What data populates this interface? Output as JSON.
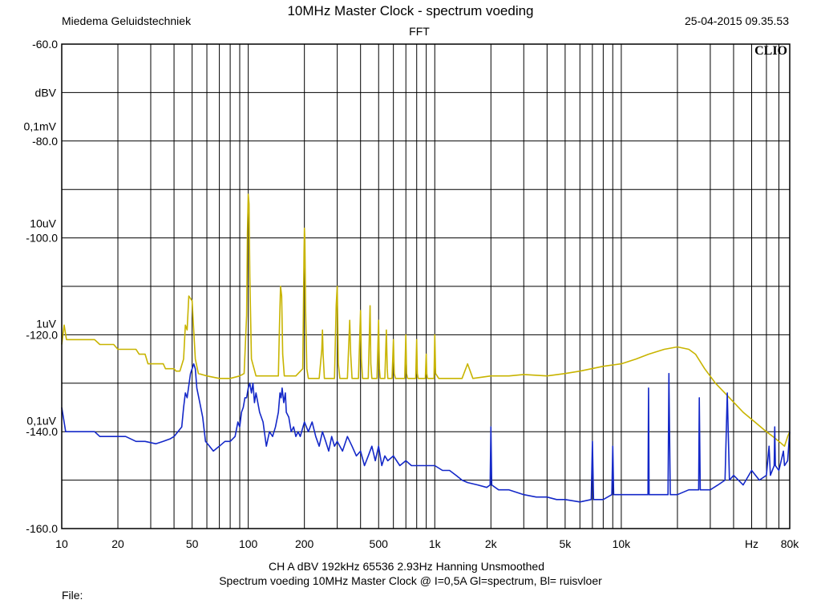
{
  "header": {
    "title": "10MHz Master Clock - spectrum voeding",
    "subtitle": "FFT",
    "company": "Miedema Geluidstechniek",
    "datetime": "25-04-2015 09.35.53"
  },
  "footer": {
    "settings": "CH A   dBV   192kHz   65536   2.93Hz   Hanning   Unsmoothed",
    "description": "Spectrum voeding 10MHz Master Clock @ I=0,5A   Gl=spectrum,  Bl= ruisvloer",
    "file_label": "File:"
  },
  "chart_data": {
    "type": "line",
    "logo": "CLIO",
    "x_scale": "log",
    "xlim": [
      10,
      80000
    ],
    "ylim": [
      -160,
      -60
    ],
    "grid": true,
    "x_tick_labels": [
      {
        "value": 10,
        "label": "10"
      },
      {
        "value": 20,
        "label": "20"
      },
      {
        "value": 50,
        "label": "50"
      },
      {
        "value": 100,
        "label": "100"
      },
      {
        "value": 200,
        "label": "200"
      },
      {
        "value": 500,
        "label": "500"
      },
      {
        "value": 1000,
        "label": "1k"
      },
      {
        "value": 2000,
        "label": "2k"
      },
      {
        "value": 5000,
        "label": "5k"
      },
      {
        "value": 10000,
        "label": "10k"
      },
      {
        "value": 50000,
        "label": "Hz"
      },
      {
        "value": 80000,
        "label": "80k"
      }
    ],
    "y_tick_labels": [
      {
        "value": -60,
        "label": "-60.0"
      },
      {
        "value": -80,
        "label": "-80.0"
      },
      {
        "value": -100,
        "label": "-100.0"
      },
      {
        "value": -120,
        "label": "-120.0"
      },
      {
        "value": -140,
        "label": "-140.0"
      },
      {
        "value": -160,
        "label": "-160.0"
      }
    ],
    "y_unit_labels": [
      {
        "value": -70,
        "label": "dBV"
      },
      {
        "value": -77,
        "label": "0,1mV"
      },
      {
        "value": -97,
        "label": "10uV"
      },
      {
        "value": -117.7,
        "label": "1uV"
      },
      {
        "value": -137.7,
        "label": "0,1uV"
      }
    ],
    "series": [
      {
        "color": "#c8b400",
        "points": [
          [
            10,
            -122
          ],
          [
            10.3,
            -118
          ],
          [
            10.6,
            -121
          ],
          [
            15,
            -121
          ],
          [
            16,
            -122
          ],
          [
            19,
            -122
          ],
          [
            20,
            -123
          ],
          [
            25,
            -123
          ],
          [
            26,
            -124
          ],
          [
            28,
            -124
          ],
          [
            29,
            -126
          ],
          [
            35,
            -126
          ],
          [
            36,
            -127
          ],
          [
            40,
            -127
          ],
          [
            41,
            -127.5
          ],
          [
            43,
            -127.5
          ],
          [
            45,
            -125
          ],
          [
            46,
            -118
          ],
          [
            47,
            -119
          ],
          [
            48,
            -112
          ],
          [
            50,
            -113
          ],
          [
            51,
            -119
          ],
          [
            52,
            -125
          ],
          [
            54,
            -128
          ],
          [
            60,
            -128.5
          ],
          [
            70,
            -129
          ],
          [
            80,
            -129
          ],
          [
            90,
            -128.5
          ],
          [
            95,
            -128
          ],
          [
            98,
            -116
          ],
          [
            99,
            -99
          ],
          [
            100,
            -91
          ],
          [
            101,
            -93
          ],
          [
            102,
            -108
          ],
          [
            104,
            -125
          ],
          [
            110,
            -128.5
          ],
          [
            130,
            -128.5
          ],
          [
            145,
            -128.5
          ],
          [
            147,
            -118
          ],
          [
            149,
            -110
          ],
          [
            151,
            -112
          ],
          [
            153,
            -124
          ],
          [
            156,
            -128.5
          ],
          [
            180,
            -128.5
          ],
          [
            196,
            -127
          ],
          [
            198,
            -111
          ],
          [
            199,
            -103
          ],
          [
            200,
            -98
          ],
          [
            201,
            -100
          ],
          [
            203,
            -115
          ],
          [
            206,
            -127
          ],
          [
            210,
            -129
          ],
          [
            240,
            -129
          ],
          [
            248,
            -123
          ],
          [
            250,
            -119
          ],
          [
            252,
            -124
          ],
          [
            256,
            -129
          ],
          [
            290,
            -129
          ],
          [
            296,
            -114
          ],
          [
            300,
            -110
          ],
          [
            304,
            -126
          ],
          [
            310,
            -129
          ],
          [
            340,
            -129
          ],
          [
            350,
            -117
          ],
          [
            354,
            -124
          ],
          [
            360,
            -129
          ],
          [
            390,
            -129
          ],
          [
            400,
            -115
          ],
          [
            404,
            -125
          ],
          [
            410,
            -129
          ],
          [
            440,
            -129
          ],
          [
            450,
            -114
          ],
          [
            454,
            -126
          ],
          [
            460,
            -129
          ],
          [
            490,
            -129
          ],
          [
            500,
            -117
          ],
          [
            505,
            -127
          ],
          [
            510,
            -129
          ],
          [
            540,
            -129
          ],
          [
            550,
            -119
          ],
          [
            556,
            -127
          ],
          [
            560,
            -129
          ],
          [
            590,
            -129
          ],
          [
            600,
            -121
          ],
          [
            606,
            -128
          ],
          [
            615,
            -129
          ],
          [
            690,
            -129
          ],
          [
            700,
            -120
          ],
          [
            706,
            -128
          ],
          [
            715,
            -129
          ],
          [
            790,
            -129
          ],
          [
            800,
            -121
          ],
          [
            806,
            -128
          ],
          [
            815,
            -129
          ],
          [
            890,
            -129
          ],
          [
            900,
            -124
          ],
          [
            906,
            -128
          ],
          [
            915,
            -129
          ],
          [
            990,
            -129
          ],
          [
            1000,
            -120
          ],
          [
            1010,
            -128
          ],
          [
            1050,
            -129
          ],
          [
            1400,
            -129
          ],
          [
            1500,
            -126
          ],
          [
            1600,
            -129
          ],
          [
            2000,
            -128.5
          ],
          [
            2500,
            -128.5
          ],
          [
            3000,
            -128.2
          ],
          [
            4000,
            -128.5
          ],
          [
            5000,
            -128
          ],
          [
            6000,
            -127.5
          ],
          [
            8000,
            -126.5
          ],
          [
            10000,
            -126
          ],
          [
            12000,
            -125
          ],
          [
            14000,
            -124
          ],
          [
            17000,
            -123
          ],
          [
            20000,
            -122.5
          ],
          [
            23000,
            -123
          ],
          [
            25000,
            -124
          ],
          [
            28000,
            -127
          ],
          [
            32000,
            -130
          ],
          [
            38000,
            -133
          ],
          [
            45000,
            -136
          ],
          [
            52000,
            -138
          ],
          [
            60000,
            -140
          ],
          [
            65000,
            -141
          ],
          [
            70000,
            -142
          ],
          [
            75000,
            -143
          ],
          [
            78000,
            -141
          ],
          [
            80000,
            -140
          ]
        ]
      },
      {
        "color": "#1428c8",
        "points": [
          [
            10,
            -135
          ],
          [
            10.2,
            -137
          ],
          [
            10.5,
            -140
          ],
          [
            15,
            -140
          ],
          [
            16,
            -141
          ],
          [
            20,
            -141
          ],
          [
            22,
            -141
          ],
          [
            25,
            -142
          ],
          [
            28,
            -142
          ],
          [
            32,
            -142.5
          ],
          [
            35,
            -142
          ],
          [
            38,
            -141.5
          ],
          [
            40,
            -141
          ],
          [
            44,
            -139
          ],
          [
            45,
            -135
          ],
          [
            46,
            -132
          ],
          [
            47,
            -133
          ],
          [
            49,
            -128
          ],
          [
            51,
            -126
          ],
          [
            52,
            -127
          ],
          [
            53,
            -131
          ],
          [
            55,
            -134
          ],
          [
            57,
            -137
          ],
          [
            59,
            -142
          ],
          [
            62,
            -143
          ],
          [
            65,
            -144
          ],
          [
            70,
            -143
          ],
          [
            75,
            -142
          ],
          [
            80,
            -142
          ],
          [
            85,
            -141
          ],
          [
            88,
            -138
          ],
          [
            90,
            -139
          ],
          [
            92,
            -136
          ],
          [
            94,
            -135
          ],
          [
            96,
            -133
          ],
          [
            98,
            -133
          ],
          [
            100,
            -131
          ],
          [
            102,
            -130
          ],
          [
            104,
            -132
          ],
          [
            106,
            -130
          ],
          [
            108,
            -134
          ],
          [
            110,
            -132
          ],
          [
            115,
            -136
          ],
          [
            120,
            -138
          ],
          [
            125,
            -143
          ],
          [
            130,
            -140
          ],
          [
            135,
            -141
          ],
          [
            140,
            -139
          ],
          [
            145,
            -136
          ],
          [
            148,
            -132
          ],
          [
            150,
            -133
          ],
          [
            152,
            -131
          ],
          [
            155,
            -134
          ],
          [
            158,
            -132
          ],
          [
            160,
            -136
          ],
          [
            165,
            -137
          ],
          [
            170,
            -140
          ],
          [
            175,
            -139
          ],
          [
            180,
            -141
          ],
          [
            185,
            -140
          ],
          [
            190,
            -141
          ],
          [
            200,
            -138
          ],
          [
            210,
            -140
          ],
          [
            220,
            -138
          ],
          [
            230,
            -141
          ],
          [
            240,
            -143
          ],
          [
            250,
            -140
          ],
          [
            260,
            -142
          ],
          [
            270,
            -144
          ],
          [
            280,
            -141
          ],
          [
            290,
            -143
          ],
          [
            300,
            -142
          ],
          [
            320,
            -144
          ],
          [
            340,
            -141
          ],
          [
            360,
            -143
          ],
          [
            380,
            -145
          ],
          [
            400,
            -144
          ],
          [
            420,
            -147
          ],
          [
            440,
            -145
          ],
          [
            460,
            -143
          ],
          [
            480,
            -146
          ],
          [
            500,
            -143
          ],
          [
            520,
            -147
          ],
          [
            540,
            -145
          ],
          [
            560,
            -146
          ],
          [
            600,
            -145
          ],
          [
            650,
            -147
          ],
          [
            700,
            -146
          ],
          [
            750,
            -147
          ],
          [
            800,
            -147
          ],
          [
            900,
            -147
          ],
          [
            1000,
            -147
          ],
          [
            1100,
            -148
          ],
          [
            1200,
            -148
          ],
          [
            1300,
            -149
          ],
          [
            1400,
            -150
          ],
          [
            1500,
            -150.5
          ],
          [
            1700,
            -151
          ],
          [
            1900,
            -151.5
          ],
          [
            1980,
            -151
          ],
          [
            2000,
            -139
          ],
          [
            2020,
            -151
          ],
          [
            2200,
            -152
          ],
          [
            2500,
            -152
          ],
          [
            3000,
            -153
          ],
          [
            3500,
            -153.5
          ],
          [
            4000,
            -153.5
          ],
          [
            4500,
            -154
          ],
          [
            5000,
            -154
          ],
          [
            6000,
            -154.5
          ],
          [
            6900,
            -154
          ],
          [
            7000,
            -142
          ],
          [
            7100,
            -154
          ],
          [
            8000,
            -154
          ],
          [
            8900,
            -153
          ],
          [
            9000,
            -143
          ],
          [
            9100,
            -153
          ],
          [
            10000,
            -153
          ],
          [
            12000,
            -153
          ],
          [
            13900,
            -153
          ],
          [
            14000,
            -131
          ],
          [
            14100,
            -153
          ],
          [
            16000,
            -153
          ],
          [
            17800,
            -153
          ],
          [
            18000,
            -128
          ],
          [
            18300,
            -153
          ],
          [
            20000,
            -153
          ],
          [
            23000,
            -152
          ],
          [
            25000,
            -152
          ],
          [
            26000,
            -152
          ],
          [
            26200,
            -133
          ],
          [
            26500,
            -152
          ],
          [
            30000,
            -152
          ],
          [
            33000,
            -151
          ],
          [
            36000,
            -150
          ],
          [
            37000,
            -132
          ],
          [
            38000,
            -150
          ],
          [
            40000,
            -149
          ],
          [
            45000,
            -151
          ],
          [
            50000,
            -148
          ],
          [
            55000,
            -150
          ],
          [
            60000,
            -149
          ],
          [
            62000,
            -143
          ],
          [
            63000,
            -149
          ],
          [
            66000,
            -147
          ],
          [
            66500,
            -139
          ],
          [
            67000,
            -147
          ],
          [
            70000,
            -148
          ],
          [
            74000,
            -144
          ],
          [
            75000,
            -147
          ],
          [
            78000,
            -146
          ],
          [
            80000,
            -140
          ]
        ]
      }
    ]
  }
}
